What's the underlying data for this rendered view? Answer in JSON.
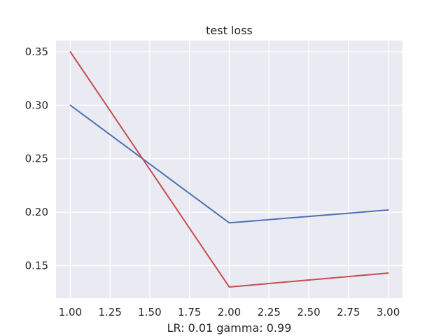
{
  "chart_data": {
    "type": "line",
    "title": "test loss",
    "xlabel": "LR: 0.01 gamma: 0.99",
    "ylabel": "",
    "x": [
      1,
      2,
      3
    ],
    "xlim": [
      0.91,
      3.09
    ],
    "ylim": [
      0.1195,
      0.3605
    ],
    "xticks": [
      1.0,
      1.25,
      1.5,
      1.75,
      2.0,
      2.25,
      2.5,
      2.75,
      3.0
    ],
    "xtick_labels": [
      "1.00",
      "1.25",
      "1.50",
      "1.75",
      "2.00",
      "2.25",
      "2.50",
      "2.75",
      "3.00"
    ],
    "yticks": [
      0.15,
      0.2,
      0.25,
      0.3,
      0.35
    ],
    "ytick_labels": [
      "0.15",
      "0.20",
      "0.25",
      "0.30",
      "0.35"
    ],
    "grid": true,
    "background": "#EAEAF2",
    "series": [
      {
        "values": [
          0.3,
          0.19,
          0.202
        ],
        "color": "#4C72B0"
      },
      {
        "values": [
          0.35,
          0.13,
          0.143
        ],
        "color": "#C44E52"
      }
    ]
  }
}
